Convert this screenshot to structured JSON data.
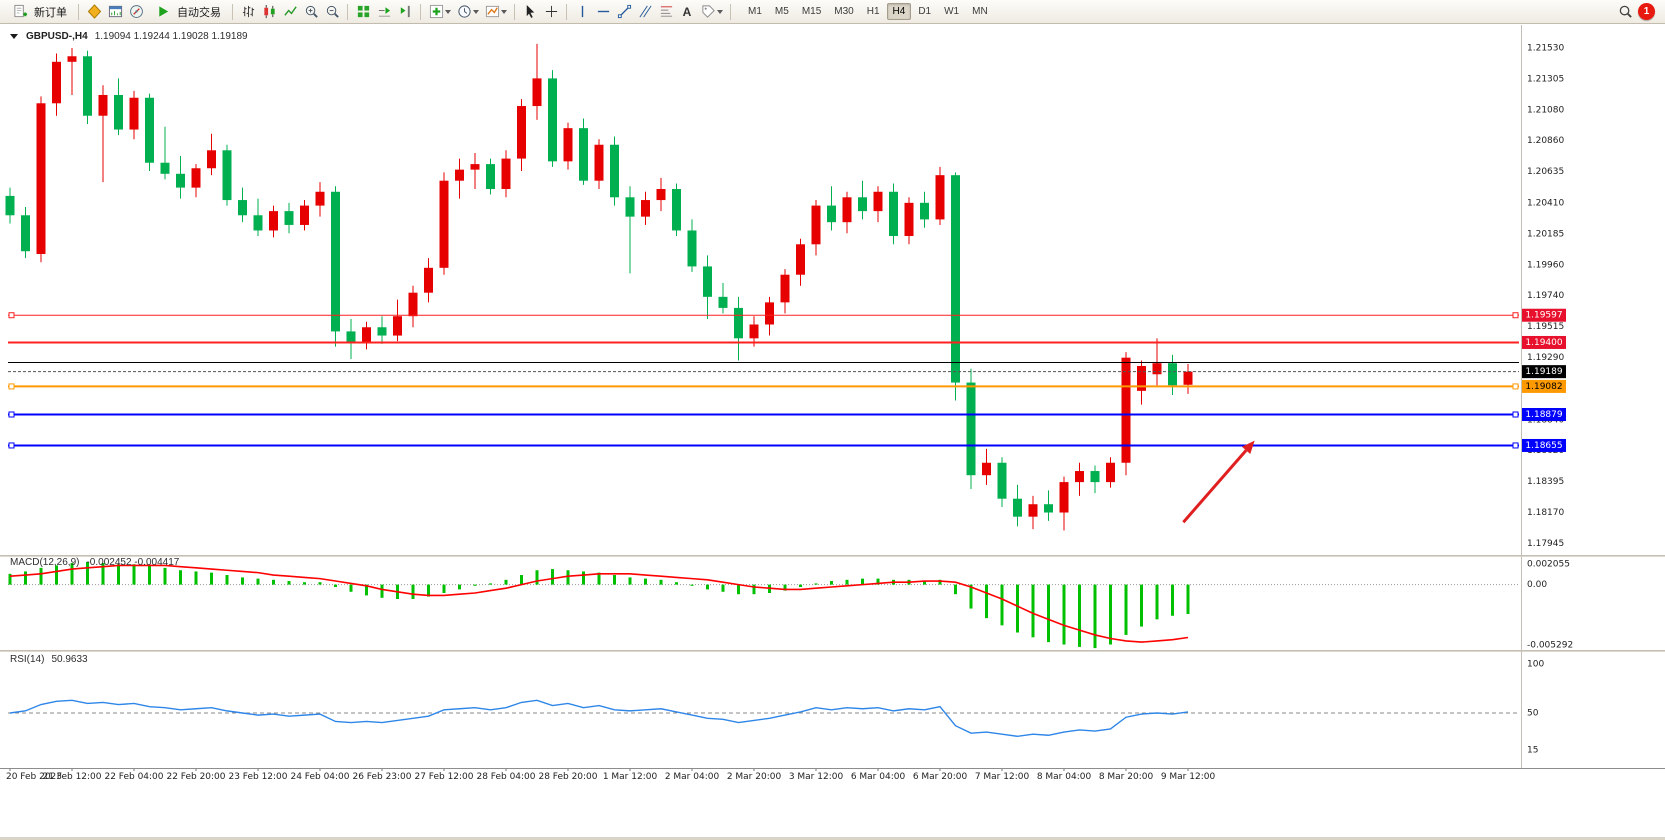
{
  "toolbar": {
    "new_order": "新订单",
    "auto_trading": "自动交易",
    "text_tool": "A",
    "timeframes": [
      "M1",
      "M5",
      "M15",
      "M30",
      "H1",
      "H4",
      "D1",
      "W1",
      "MN"
    ],
    "active_timeframe": "H4",
    "notification_count": "1"
  },
  "header": {
    "symbol_period": "GBPUSD-,H4",
    "ohlc_text": "1.19094 1.19244 1.19028 1.19189"
  },
  "macd_header": {
    "label": "MACD(12,26,9)",
    "values": "-0.002452 -0.004417"
  },
  "rsi_header": {
    "label": "RSI(14)",
    "value": "50.9633"
  },
  "chart_data": [
    {
      "type": "candlestick",
      "symbol": "GBPUSD-",
      "timeframe": "H4",
      "title": "GBPUSD-,H4",
      "ohlc_current": {
        "open": 1.19094,
        "high": 1.19244,
        "low": 1.19028,
        "close": 1.19189
      },
      "ylim": [
        1.1787,
        1.2166
      ],
      "up_color": "#e60000",
      "down_color": "#00b050",
      "y_axis_labels": [
        "1.21530",
        "1.21305",
        "1.21080",
        "1.20860",
        "1.20635",
        "1.20410",
        "1.20185",
        "1.19960",
        "1.19740",
        "1.19515",
        "1.19290",
        "1.19065",
        "1.18840",
        "1.18620",
        "1.18395",
        "1.18170",
        "1.17945"
      ],
      "x_axis_labels": [
        "20 Feb 2023",
        "21 Feb 12:00",
        "22 Feb 04:00",
        "22 Feb 20:00",
        "23 Feb 12:00",
        "24 Feb 04:00",
        "26 Feb 23:00",
        "27 Feb 12:00",
        "28 Feb 04:00",
        "28 Feb 20:00",
        "1 Mar 12:00",
        "2 Mar 04:00",
        "2 Mar 20:00",
        "3 Mar 12:00",
        "6 Mar 04:00",
        "6 Mar 20:00",
        "7 Mar 12:00",
        "8 Mar 04:00",
        "8 Mar 20:00",
        "9 Mar 12:00"
      ],
      "bars_per_label": 4,
      "candles": [
        [
          1.2046,
          1.2052,
          1.2026,
          1.2032
        ],
        [
          1.2032,
          1.2038,
          1.2001,
          1.2006
        ],
        [
          1.2004,
          1.2118,
          1.1998,
          1.2113
        ],
        [
          1.2113,
          1.2149,
          1.2104,
          1.2143
        ],
        [
          1.2143,
          1.2153,
          1.2119,
          1.2147
        ],
        [
          1.2147,
          1.2151,
          1.2098,
          1.2104
        ],
        [
          1.2104,
          1.2126,
          1.2056,
          1.2119
        ],
        [
          1.2119,
          1.2131,
          1.209,
          1.2094
        ],
        [
          1.2094,
          1.2122,
          1.2087,
          1.2117
        ],
        [
          1.2117,
          1.212,
          1.2064,
          1.207
        ],
        [
          1.207,
          1.2096,
          1.2058,
          1.2062
        ],
        [
          1.2062,
          1.2075,
          1.2044,
          1.2052
        ],
        [
          1.2052,
          1.2069,
          1.2045,
          1.2066
        ],
        [
          1.2066,
          1.2091,
          1.2061,
          1.2079
        ],
        [
          1.2079,
          1.2083,
          1.2039,
          1.2043
        ],
        [
          1.2043,
          1.2052,
          1.2027,
          1.2032
        ],
        [
          1.2032,
          1.2044,
          1.2017,
          1.2021
        ],
        [
          1.2021,
          1.2039,
          1.2016,
          1.2035
        ],
        [
          1.2035,
          1.2041,
          1.2019,
          1.2025
        ],
        [
          1.2025,
          1.2043,
          1.2021,
          1.2039
        ],
        [
          1.2039,
          1.2056,
          1.2031,
          1.2049
        ],
        [
          1.2049,
          1.2053,
          1.1937,
          1.1948
        ],
        [
          1.1948,
          1.1957,
          1.1928,
          1.194
        ],
        [
          1.194,
          1.1955,
          1.1935,
          1.1951
        ],
        [
          1.1951,
          1.1959,
          1.1939,
          1.1945
        ],
        [
          1.1945,
          1.1971,
          1.1941,
          1.1959
        ],
        [
          1.1959,
          1.1981,
          1.1951,
          1.1976
        ],
        [
          1.1976,
          1.2001,
          1.1969,
          1.1994
        ],
        [
          1.1994,
          1.2063,
          1.1989,
          1.2057
        ],
        [
          1.2057,
          1.2073,
          1.2044,
          1.2065
        ],
        [
          1.2065,
          1.2077,
          1.2051,
          1.2069
        ],
        [
          1.2069,
          1.2073,
          1.2047,
          1.2051
        ],
        [
          1.2051,
          1.2079,
          1.2045,
          1.2073
        ],
        [
          1.2073,
          1.2116,
          1.2064,
          1.2111
        ],
        [
          1.2111,
          1.2156,
          1.2101,
          1.2131
        ],
        [
          1.2131,
          1.2137,
          1.2067,
          1.2071
        ],
        [
          1.2071,
          1.2099,
          1.2065,
          1.2095
        ],
        [
          1.2095,
          1.2102,
          1.2054,
          1.2057
        ],
        [
          1.2057,
          1.2087,
          1.2051,
          1.2083
        ],
        [
          1.2083,
          1.2089,
          1.2039,
          1.2045
        ],
        [
          1.2045,
          1.2053,
          1.199,
          1.2031
        ],
        [
          1.2031,
          1.2049,
          1.2025,
          1.2043
        ],
        [
          1.2043,
          1.2059,
          1.2035,
          1.2051
        ],
        [
          1.2051,
          1.2055,
          1.2017,
          1.2021
        ],
        [
          1.2021,
          1.2029,
          1.1991,
          1.1995
        ],
        [
          1.1995,
          1.2003,
          1.1957,
          1.1973
        ],
        [
          1.1973,
          1.1983,
          1.1961,
          1.1965
        ],
        [
          1.1965,
          1.1973,
          1.1927,
          1.1943
        ],
        [
          1.1943,
          1.1959,
          1.1937,
          1.1953
        ],
        [
          1.1953,
          1.1973,
          1.1945,
          1.1969
        ],
        [
          1.1969,
          1.1993,
          1.1961,
          1.1989
        ],
        [
          1.1989,
          1.2015,
          1.1981,
          1.2011
        ],
        [
          1.2011,
          1.2043,
          1.2003,
          1.2039
        ],
        [
          1.2039,
          1.2053,
          1.2021,
          1.2027
        ],
        [
          1.2027,
          1.2049,
          1.2019,
          1.2045
        ],
        [
          1.2045,
          1.2057,
          1.2029,
          1.2035
        ],
        [
          1.2035,
          1.2053,
          1.2027,
          1.2049
        ],
        [
          1.2049,
          1.2055,
          1.2011,
          1.2017
        ],
        [
          1.2017,
          1.2045,
          1.2011,
          1.2041
        ],
        [
          1.2041,
          1.2049,
          1.2023,
          1.2029
        ],
        [
          1.2029,
          1.2067,
          1.2025,
          1.2061
        ],
        [
          1.2061,
          1.2063,
          1.1898,
          1.1911
        ],
        [
          1.1911,
          1.1921,
          1.1834,
          1.1844
        ],
        [
          1.1844,
          1.1863,
          1.1837,
          1.1853
        ],
        [
          1.1853,
          1.1857,
          1.1821,
          1.1827
        ],
        [
          1.1827,
          1.1837,
          1.1807,
          1.1814
        ],
        [
          1.1814,
          1.1829,
          1.1805,
          1.1823
        ],
        [
          1.1823,
          1.1833,
          1.1811,
          1.1817
        ],
        [
          1.1817,
          1.1843,
          1.1804,
          1.1839
        ],
        [
          1.1839,
          1.1853,
          1.1829,
          1.1847
        ],
        [
          1.1847,
          1.1851,
          1.1831,
          1.1839
        ],
        [
          1.1839,
          1.1857,
          1.1835,
          1.1853
        ],
        [
          1.1853,
          1.1933,
          1.1844,
          1.1929
        ],
        [
          1.1905,
          1.1927,
          1.1895,
          1.1923
        ],
        [
          1.1917,
          1.1943,
          1.1909,
          1.1925
        ],
        [
          1.1925,
          1.1931,
          1.1902,
          1.1909
        ],
        [
          1.19094,
          1.19244,
          1.19028,
          1.19189
        ]
      ],
      "hlines": [
        {
          "price": 1.19597,
          "color": "#ff2020",
          "width": 1,
          "handles": true,
          "dash": false
        },
        {
          "price": 1.194,
          "color": "#ff2020",
          "width": 2,
          "handles": false,
          "dash": false
        },
        {
          "price": 1.19255,
          "color": "#000000",
          "width": 1,
          "handles": false,
          "dash": false
        },
        {
          "price": 1.19189,
          "color": "#555555",
          "width": 1,
          "handles": false,
          "dash": true
        },
        {
          "price": 1.19082,
          "color": "#ff9900",
          "width": 2,
          "handles": true,
          "dash": false
        },
        {
          "price": 1.18879,
          "color": "#0000ff",
          "width": 2,
          "handles": true,
          "dash": false
        },
        {
          "price": 1.18655,
          "color": "#0000ff",
          "width": 2,
          "handles": true,
          "dash": false
        }
      ],
      "badges": [
        {
          "price": 1.19597,
          "text": "1.19597",
          "bg": "#e8112d",
          "fg": "#ffffff"
        },
        {
          "price": 1.194,
          "text": "1.19400",
          "bg": "#e8112d",
          "fg": "#ffffff"
        },
        {
          "price": 1.19189,
          "text": "1.19189",
          "bg": "#000000",
          "fg": "#ffffff"
        },
        {
          "price": 1.19082,
          "text": "1.19082",
          "bg": "#ff9900",
          "fg": "#000000"
        },
        {
          "price": 1.18879,
          "text": "1.18879",
          "bg": "#0000ff",
          "fg": "#ffffff"
        },
        {
          "price": 1.18655,
          "text": "1.18655",
          "bg": "#0000ff",
          "fg": "#ffffff"
        }
      ],
      "arrow": {
        "from_bar": 75.7,
        "from_price": 1.181,
        "to_bar": 80.3,
        "to_price": 1.1869,
        "color": "#e02020"
      }
    },
    {
      "type": "bar",
      "name": "MACD",
      "label": "MACD(12,26,9)",
      "current_values": "-0.002452 -0.004417",
      "ylim": [
        -0.005292,
        0.002055
      ],
      "y_axis_labels": [
        "0.002055",
        "0.00",
        "-0.005292"
      ],
      "y_axis_values": [
        0.002055,
        0,
        -0.005292
      ],
      "hist_color": "#00c000",
      "signal_color": "#ff0000",
      "histogram": [
        0.0009,
        0.0011,
        0.0014,
        0.0016,
        0.0018,
        0.0019,
        0.0018,
        0.0017,
        0.0017,
        0.0016,
        0.0014,
        0.0012,
        0.0011,
        0.001,
        0.0008,
        0.0006,
        0.0005,
        0.0004,
        0.0003,
        0.0002,
        0.0002,
        -0.0002,
        -0.0006,
        -0.0009,
        -0.0011,
        -0.0012,
        -0.0012,
        -0.001,
        -0.0007,
        -0.0004,
        -0.0001,
        0.0001,
        0.0004,
        0.0008,
        0.0012,
        0.0013,
        0.0012,
        0.0011,
        0.001,
        0.0008,
        0.0006,
        0.0005,
        0.0004,
        0.0002,
        -0.0001,
        -0.0004,
        -0.0006,
        -0.0008,
        -0.0008,
        -0.0007,
        -0.0005,
        -0.0002,
        0.0001,
        0.0003,
        0.0004,
        0.0005,
        0.0005,
        0.0004,
        0.0004,
        0.0003,
        0.0004,
        -0.0008,
        -0.002,
        -0.0028,
        -0.0034,
        -0.004,
        -0.0044,
        -0.0048,
        -0.005,
        -0.0052,
        -0.0053,
        -0.005,
        -0.0042,
        -0.0035,
        -0.0029,
        -0.0026,
        -0.002452
      ],
      "signal": [
        0.0007,
        0.0008,
        0.0009,
        0.0011,
        0.0013,
        0.0014,
        0.0015,
        0.0016,
        0.0016,
        0.0016,
        0.0016,
        0.0015,
        0.0014,
        0.0013,
        0.0012,
        0.0011,
        0.001,
        0.0008,
        0.0007,
        0.0006,
        0.0005,
        0.0003,
        0.0001,
        -0.0001,
        -0.0004,
        -0.0006,
        -0.0008,
        -0.0009,
        -0.0009,
        -0.0008,
        -0.0007,
        -0.0005,
        -0.0003,
        0.0,
        0.0003,
        0.0005,
        0.0007,
        0.0008,
        0.0009,
        0.0009,
        0.0009,
        0.0008,
        0.0007,
        0.0006,
        0.0005,
        0.0004,
        0.0002,
        0.0,
        -0.0002,
        -0.0003,
        -0.0004,
        -0.0004,
        -0.0003,
        -0.0002,
        -0.0001,
        0.0,
        0.0001,
        0.0002,
        0.0002,
        0.0003,
        0.0003,
        0.0002,
        -0.0002,
        -0.0007,
        -0.0012,
        -0.0018,
        -0.0024,
        -0.0029,
        -0.0034,
        -0.0038,
        -0.0042,
        -0.0045,
        -0.0047,
        -0.0048,
        -0.0047,
        -0.0046,
        -0.004417
      ]
    },
    {
      "type": "line",
      "name": "RSI",
      "label": "RSI(14)",
      "current_value": "50.9633",
      "ylim": [
        0,
        100
      ],
      "y_axis_labels": [
        "100",
        "50",
        "15"
      ],
      "y_axis_values": [
        100,
        50,
        15
      ],
      "level": 50,
      "color": "#2e86e8",
      "values": [
        50,
        52,
        58,
        61,
        62,
        59,
        60,
        58,
        59,
        56,
        55,
        53,
        54,
        55,
        52,
        50,
        48,
        49,
        47,
        48,
        49,
        42,
        41,
        42,
        41,
        43,
        45,
        47,
        53,
        54,
        55,
        53,
        55,
        60,
        62,
        57,
        59,
        55,
        57,
        53,
        52,
        53,
        54,
        51,
        48,
        45,
        44,
        41,
        43,
        45,
        48,
        51,
        55,
        53,
        55,
        54,
        55,
        52,
        54,
        53,
        56,
        38,
        31,
        32,
        30,
        28,
        30,
        29,
        32,
        34,
        33,
        35,
        46,
        49,
        50,
        49,
        50.9633
      ]
    }
  ]
}
